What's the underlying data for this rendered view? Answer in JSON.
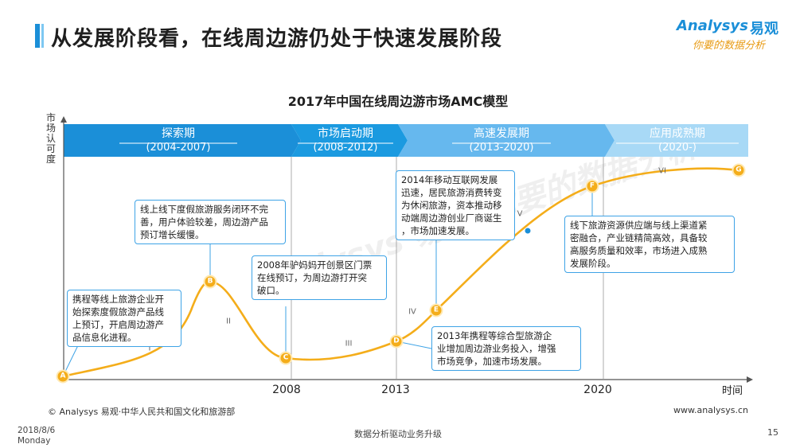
{
  "header": {
    "title": "从发展阶段看，在线周边游仍处于快速发展阶段",
    "logo_en": "Analysys",
    "logo_cn": "易观",
    "logo_slogan": "你要的数据分析"
  },
  "watermark": "Analysys 易观 你要的数据分析",
  "chart_data": {
    "type": "line",
    "title": "2017年中国在线周边游市场AMC模型",
    "ylabel": "市场认可度",
    "xlabel": "时间",
    "x_ticks": [
      "2008",
      "2013",
      "2020"
    ],
    "phases": [
      {
        "name": "探索期",
        "years": "(2004-2007)",
        "color": "#1b8fd8"
      },
      {
        "name": "市场启动期",
        "years": "(2008-2012)",
        "color": "#1b9ae0"
      },
      {
        "name": "高速发展期",
        "years": "(2013-2020)",
        "color": "#66b8ee"
      },
      {
        "name": "应用成熟期",
        "years": "(2020-)",
        "color": "#a8d9f6"
      }
    ],
    "stages": [
      "I",
      "II",
      "III",
      "IV",
      "V",
      "VI"
    ],
    "points": [
      {
        "label": "A",
        "text": "携程等线上旅游企业开始探索度假旅游产品线上预订，开启周边游产品信息化进程。"
      },
      {
        "label": "B",
        "text": "线上线下度假旅游服务闭环不完善，用户体验较差，周边游产品预订增长缓慢。"
      },
      {
        "label": "C",
        "text": "2008年驴妈妈开创景区门票在线预订，为周边游打开突破口。"
      },
      {
        "label": "D",
        "text": "2013年携程等综合型旅游企业增加周边游业务投入，增强市场竞争，加速市场发展。"
      },
      {
        "label": "E",
        "text": "2014年移动互联网发展迅速，居民旅游消费转变为休闲旅游，资本推动移动端周边游创业厂商诞生，市场加速发展。"
      },
      {
        "label": "F",
        "text": "线下旅游资源供应端与线上渠道紧密融合，产业链精简高效，具备较高服务质量和效率，市场进入成熟发展阶段。"
      },
      {
        "label": "G",
        "text": ""
      }
    ]
  },
  "callouts": {
    "a": [
      "携程等线上旅游企业开",
      "始探索度假旅游产品线",
      "上预订，开启周边游产",
      "品信息化进程。"
    ],
    "b": [
      "线上线下度假旅游服务闭环不完",
      "善，用户体验较差，周边游产品",
      "预订增长缓慢。"
    ],
    "c": [
      "2008年驴妈妈开创景区门票",
      "在线预订，为周边游打开突",
      "破口。"
    ],
    "d": [
      "2013年携程等综合型旅游企",
      "业增加周边游业务投入，增强",
      "市场竞争，加速市场发展。"
    ],
    "e": [
      "2014年移动互联网发展",
      "迅速，居民旅游消费转变",
      "为休闲旅游，资本推动移",
      "动端周边游创业厂商诞生",
      "，市场加速发展。"
    ],
    "f": [
      "线下旅游资源供应端与线上渠道紧",
      "密融合，产业链精简高效，具备较",
      "高服务质量和效率，市场进入成熟",
      "发展阶段。"
    ]
  },
  "footer": {
    "source": "© Analysys 易观·中华人民共和国文化和旅游部",
    "website": "www.analysys.cn",
    "date": "2018/8/6",
    "weekday": "Monday",
    "slogan": "数据分析驱动业务升级",
    "page": "15"
  },
  "colors": {
    "accent": "#1b8fd8",
    "curve": "#f4ad1a",
    "point": "#f4ad1a"
  }
}
